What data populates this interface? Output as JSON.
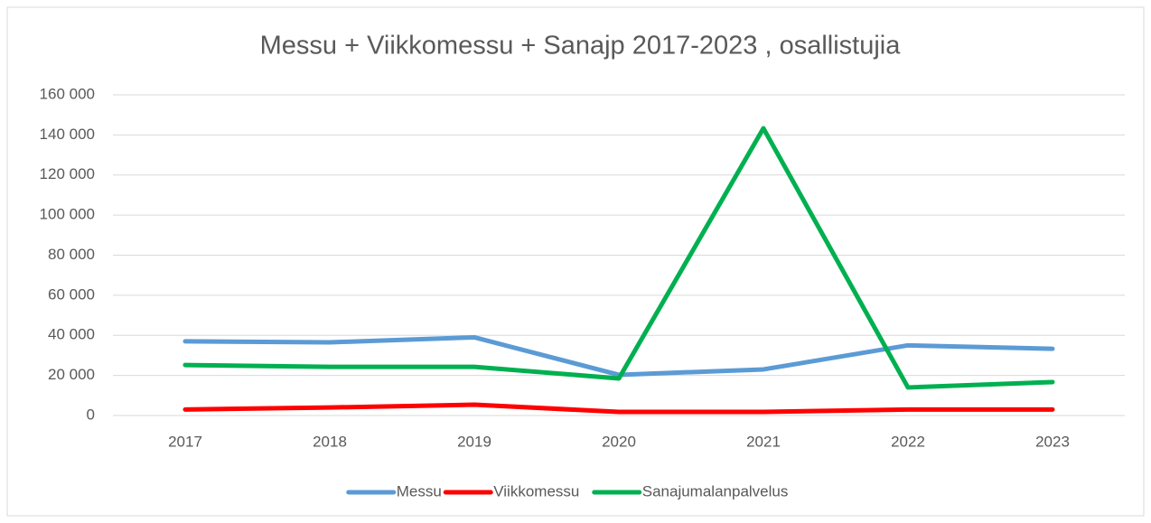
{
  "chart_data": {
    "type": "line",
    "title": "Messu + Viikkomessu + Sanajp 2017-2023 , osallistujia",
    "categories": [
      "2017",
      "2018",
      "2019",
      "2020",
      "2021",
      "2022",
      "2023"
    ],
    "series": [
      {
        "name": "Messu",
        "color": "#5b9bd5",
        "values": [
          37000,
          36500,
          39000,
          20300,
          23000,
          35000,
          33300
        ]
      },
      {
        "name": "Viikkomessu",
        "color": "#ff0000",
        "values": [
          3000,
          4000,
          5400,
          1800,
          1800,
          3000,
          3000
        ]
      },
      {
        "name": "Sanajumalanpalvelus",
        "color": "#00b050",
        "values": [
          25200,
          24300,
          24300,
          18500,
          143300,
          14000,
          16700
        ]
      }
    ],
    "ylim": [
      0,
      160000
    ],
    "yticks": [
      0,
      {
        "value": 20000,
        "label": "20 000"
      },
      {
        "value": 40000,
        "label": "40 000"
      },
      {
        "value": 60000,
        "label": "60 000"
      },
      {
        "value": 80000,
        "label": "80 000"
      },
      {
        "value": 100000,
        "label": "100 000"
      },
      {
        "value": 120000,
        "label": "120 000"
      },
      {
        "value": 140000,
        "label": "140 000"
      },
      {
        "value": 160000,
        "label": "160 000"
      }
    ],
    "grid": true,
    "legend": "bottom"
  }
}
